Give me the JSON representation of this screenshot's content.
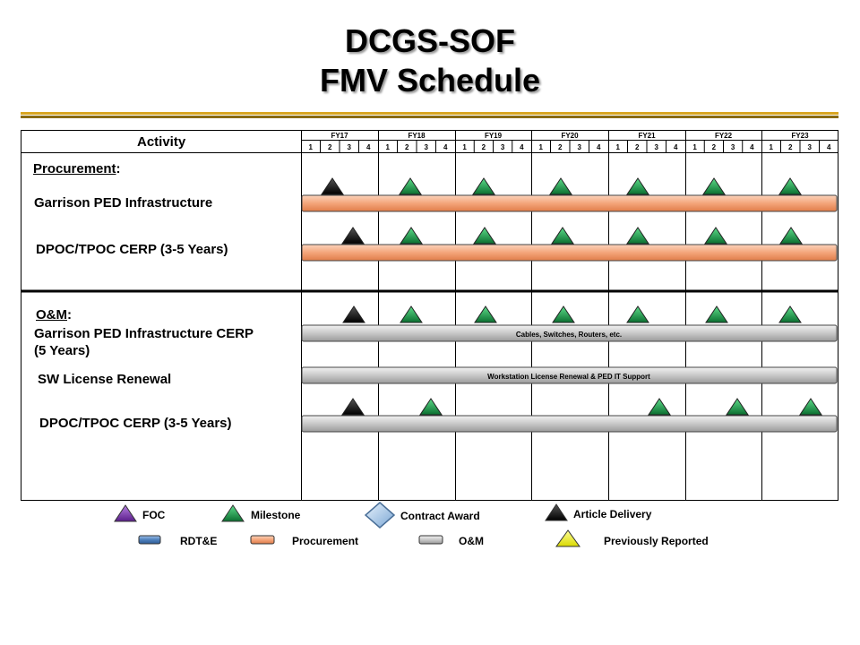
{
  "title": {
    "line1": "DCGS-SOF",
    "line2": "FMV Schedule"
  },
  "table": {
    "activity_header": "Activity",
    "fiscal_years": [
      "FY17",
      "FY18",
      "FY19",
      "FY20",
      "FY21",
      "FY22",
      "FY23"
    ],
    "quarters": [
      "1",
      "2",
      "3",
      "4"
    ]
  },
  "procurement": {
    "heading": "Procurement",
    "heading_suffix": ":",
    "rows": [
      {
        "label": "Garrison PED Infrastructure",
        "bar_text": ""
      },
      {
        "label": "DPOC/TPOC CERP (3-5 Years)",
        "bar_text": ""
      }
    ]
  },
  "om": {
    "heading": "O&M",
    "heading_suffix": ":",
    "rows": [
      {
        "label_line1": "Garrison PED Infrastructure CERP",
        "label_line2": "(5 Years)",
        "bar_text": "Cables, Switches, Routers, etc."
      },
      {
        "label": "SW License Renewal",
        "bar_text": "Workstation License Renewal & PED IT Support"
      },
      {
        "label": "DPOC/TPOC CERP (3-5 Years)",
        "bar_text": ""
      }
    ]
  },
  "legend": {
    "foc": "FOC",
    "milestone": "Milestone",
    "contract_award": "Contract Award",
    "article_delivery": "Article Delivery",
    "rdte": "RDT&E",
    "procurement": "Procurement",
    "om": "O&M",
    "previously_reported": "Previously Reported"
  },
  "colors": {
    "procurement_bar": "#f4a57a",
    "om_bar": "#c8c8c8",
    "rdte_bar": "#4f81bd",
    "milestone": "#1a9a4a",
    "foc": "#7030a0",
    "article_delivery": "#000000",
    "contract_award": "#a6c8e8",
    "previously_reported": "#ffff00"
  }
}
